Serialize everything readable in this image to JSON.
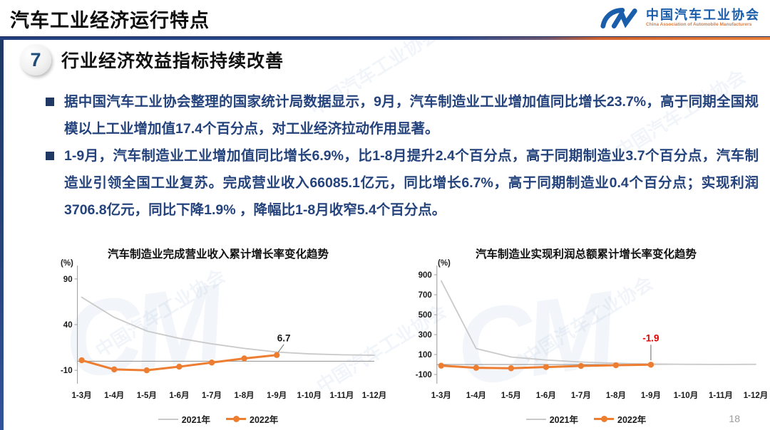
{
  "header": {
    "title": "汽车工业经济运行特点",
    "logo": {
      "org_cn": "中国汽车工业协会",
      "org_en": "China Association of Automobile Manufacturers"
    }
  },
  "section": {
    "number": "7",
    "heading": "行业经济效益指标持续改善"
  },
  "bullets": [
    {
      "text": "据中国汽车工业协会整理的国家统计局数据显示，9月，汽车制造业工业增加值同比增长23.7%，高于同期全国规模以上工业增加值17.4个百分点，对工业经济拉动作用显著。"
    },
    {
      "text": "1-9月，汽车制造业工业增加值同比增长6.9%，比1-8月提升2.4个百分点，高于同期制造业3.7个百分点，汽车制造业引领全国工业复苏。完成营业收入66085.1亿元，同比增长6.7%，高于同期制造业0.4个百分点；实现利润3706.8亿元，同比下降1.9% ，降幅比1-8月收窄5.4个百分点。"
    }
  ],
  "watermark": {
    "text": "中国汽车工业协会",
    "logo": "CM"
  },
  "colors": {
    "body_text_navy": "#24437c",
    "series_2021_gray": "#c9c9c9",
    "series_2022_orange": "#ED7D31",
    "annotation_red": "#e00000",
    "header_line_blue": "#2c4e94",
    "header_line_orange": "#e8803a",
    "logo_blue": "#1a5dab"
  },
  "page_number": "18",
  "chart_data": [
    {
      "type": "line",
      "title": "汽车制造业完成营业收入累计增长率变化趋势",
      "unit_label": "(%)",
      "categories": [
        "1-3月",
        "1-4月",
        "1-5月",
        "1-6月",
        "1-7月",
        "1-8月",
        "1-9月",
        "1-10月",
        "1-11月",
        "1-12月"
      ],
      "yticks": [
        90,
        40,
        -10
      ],
      "ylim": [
        -20,
        100
      ],
      "grid": false,
      "legend_position": "bottom",
      "series": [
        {
          "name": "2021年",
          "color": "#c9c9c9",
          "markers": false,
          "values": [
            70,
            48,
            33,
            25,
            19,
            14,
            10,
            8,
            7,
            6.5
          ]
        },
        {
          "name": "2022年",
          "color": "#ED7D31",
          "markers": true,
          "values": [
            1,
            -9,
            -10,
            -6,
            -1.5,
            3,
            6.7
          ]
        }
      ],
      "annotation": {
        "text": "6.7",
        "color": "#1a1a1a",
        "series": "2022年",
        "point_index": 6,
        "callout": "diagonal"
      }
    },
    {
      "type": "line",
      "title": "汽车制造业实现利润总额累计增长率变化趋势",
      "unit_label": "(%)",
      "categories": [
        "1-3月",
        "1-4月",
        "1-5月",
        "1-6月",
        "1-7月",
        "1-8月",
        "1-9月",
        "1-10月",
        "1-11月",
        "1-12月"
      ],
      "yticks": [
        900,
        700,
        500,
        300,
        100,
        -100
      ],
      "ylim": [
        -150,
        950
      ],
      "grid": false,
      "legend_position": "bottom",
      "series": [
        {
          "name": "2021年",
          "color": "#c9c9c9",
          "markers": false,
          "values": [
            840,
            160,
            75,
            45,
            25,
            12,
            5,
            2,
            1,
            2
          ]
        },
        {
          "name": "2022年",
          "color": "#ED7D31",
          "markers": true,
          "values": [
            -11.9,
            -33.4,
            -37.5,
            -25.5,
            -14.4,
            -7.3,
            -1.9
          ]
        }
      ],
      "annotation": {
        "text": "-1.9",
        "color": "#e00000",
        "series": "2022年",
        "point_index": 6,
        "callout": "vertical"
      }
    }
  ]
}
